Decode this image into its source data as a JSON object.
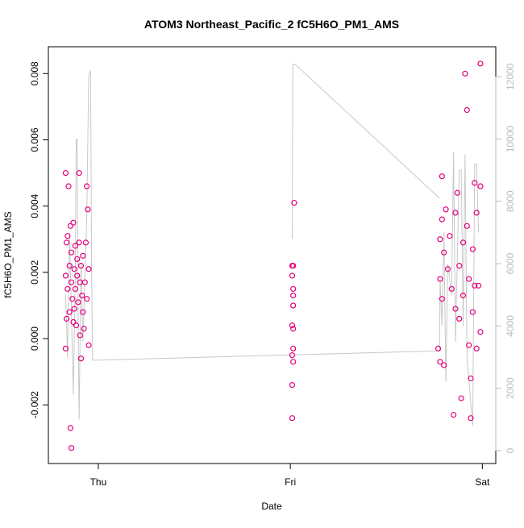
{
  "chart_data": {
    "type": "scatter",
    "title": "ATOM3 Northeast_Pacific_2 fC5H6O_PM1_AMS",
    "x_label": "Date",
    "y_label": "fC5H6O_PM1_AMS",
    "xlim": [
      -0.26,
      2.07
    ],
    "xticks": [
      {
        "value": 0,
        "label": "Thu"
      },
      {
        "value": 1,
        "label": "Fri"
      },
      {
        "value": 2,
        "label": "Sat"
      }
    ],
    "ylim": [
      -0.00377,
      0.00881
    ],
    "yticks": [
      -0.002,
      {
        "value": 0,
        "label": "0.000"
      },
      0.002,
      0.004,
      0.006,
      0.008
    ],
    "y2lim": [
      -414,
      12962
    ],
    "y2ticks": [
      0,
      2000,
      4000,
      6000,
      8000,
      10000,
      12000
    ],
    "series": [
      {
        "type": "scatter",
        "color": "#e6007e",
        "x": [
          -0.17,
          -0.17,
          -0.17,
          -0.165,
          -0.165,
          -0.16,
          -0.16,
          -0.155,
          -0.15,
          -0.15,
          -0.145,
          -0.145,
          -0.14,
          -0.14,
          -0.14,
          -0.135,
          -0.13,
          -0.13,
          -0.125,
          -0.125,
          -0.12,
          -0.12,
          -0.115,
          -0.11,
          -0.11,
          -0.105,
          -0.1,
          -0.1,
          -0.095,
          -0.095,
          -0.09,
          -0.09,
          -0.085,
          -0.08,
          -0.08,
          -0.075,
          -0.07,
          -0.065,
          -0.06,
          -0.06,
          -0.055,
          -0.05,
          -0.05,
          1.01,
          1.01,
          1.01,
          1.01,
          1.01,
          1.01,
          1.015,
          1.015,
          1.015,
          1.015,
          1.015,
          1.015,
          1.015,
          1.02,
          1.77,
          1.78,
          1.78,
          1.78,
          1.79,
          1.79,
          1.79,
          1.8,
          1.8,
          1.81,
          1.82,
          1.83,
          1.84,
          1.85,
          1.86,
          1.86,
          1.87,
          1.88,
          1.88,
          1.89,
          1.9,
          1.9,
          1.91,
          1.92,
          1.92,
          1.93,
          1.93,
          1.94,
          1.94,
          1.95,
          1.95,
          1.96,
          1.96,
          1.97,
          1.97,
          1.98,
          1.99,
          1.99,
          1.99
        ],
        "values": [
          0.005,
          0.0019,
          -0.0003,
          0.0006,
          0.0029,
          0.0015,
          0.0031,
          0.0046,
          0.0022,
          0.0008,
          0.0034,
          -0.0027,
          0.0017,
          0.0026,
          -0.0033,
          0.0012,
          0.0035,
          0.0005,
          0.0021,
          0.0009,
          0.0028,
          0.0015,
          0.0004,
          0.0019,
          0.0024,
          0.0011,
          0.005,
          0.0029,
          0.0001,
          0.0017,
          -0.0006,
          0.0022,
          0.0013,
          0.0008,
          0.0025,
          0.0003,
          0.0017,
          0.0029,
          0.0046,
          0.0012,
          0.0039,
          -0.0002,
          0.0021,
          0.0022,
          0.0019,
          0.0004,
          -0.0005,
          -0.0014,
          -0.0024,
          0.0013,
          0.001,
          0.0015,
          0.0022,
          0.0003,
          -0.0003,
          -0.0007,
          0.0041,
          -0.0003,
          0.003,
          0.0018,
          -0.0007,
          0.0049,
          0.0036,
          0.0012,
          0.0026,
          -0.0008,
          0.0039,
          0.0021,
          0.0031,
          0.0015,
          -0.0023,
          0.0038,
          0.0009,
          0.0044,
          0.0022,
          0.0006,
          -0.0018,
          0.0029,
          0.0013,
          0.008,
          0.0069,
          0.0034,
          0.0018,
          -0.0002,
          -0.0012,
          -0.0024,
          0.0027,
          0.0008,
          0.0047,
          0.0016,
          0.0038,
          -0.0003,
          0.0016,
          0.0083,
          0.0046,
          0.0002
        ]
      },
      {
        "type": "line",
        "axis": "y2",
        "color": "#c8c8c8",
        "x": [
          -0.17,
          -0.16,
          -0.15,
          -0.14,
          -0.13,
          -0.12,
          -0.115,
          -0.11,
          -0.105,
          -0.1,
          -0.09,
          -0.08,
          -0.06,
          -0.05,
          -0.04,
          -0.035,
          -0.03,
          1.777,
          1.78,
          1.79,
          1.8,
          1.81,
          1.82,
          1.84,
          1.85,
          1.86,
          1.88,
          1.89,
          1.9,
          1.91,
          1.92,
          1.94,
          1.95,
          1.96,
          1.97,
          1.98,
          null,
          1.01,
          1.013,
          1.025,
          1.777
        ],
        "values": [
          5000,
          3000,
          7000,
          4500,
          1800,
          5500,
          10000,
          10000,
          4000,
          1000,
          6000,
          3500,
          7500,
          12000,
          12200,
          6000,
          2900,
          3200,
          5500,
          4000,
          7000,
          2200,
          6000,
          5000,
          9600,
          3500,
          9000,
          9000,
          4000,
          9500,
          3000,
          1500,
          800,
          9200,
          9200,
          7000,
          null,
          6800,
          12400,
          12400,
          8100
        ]
      }
    ]
  }
}
